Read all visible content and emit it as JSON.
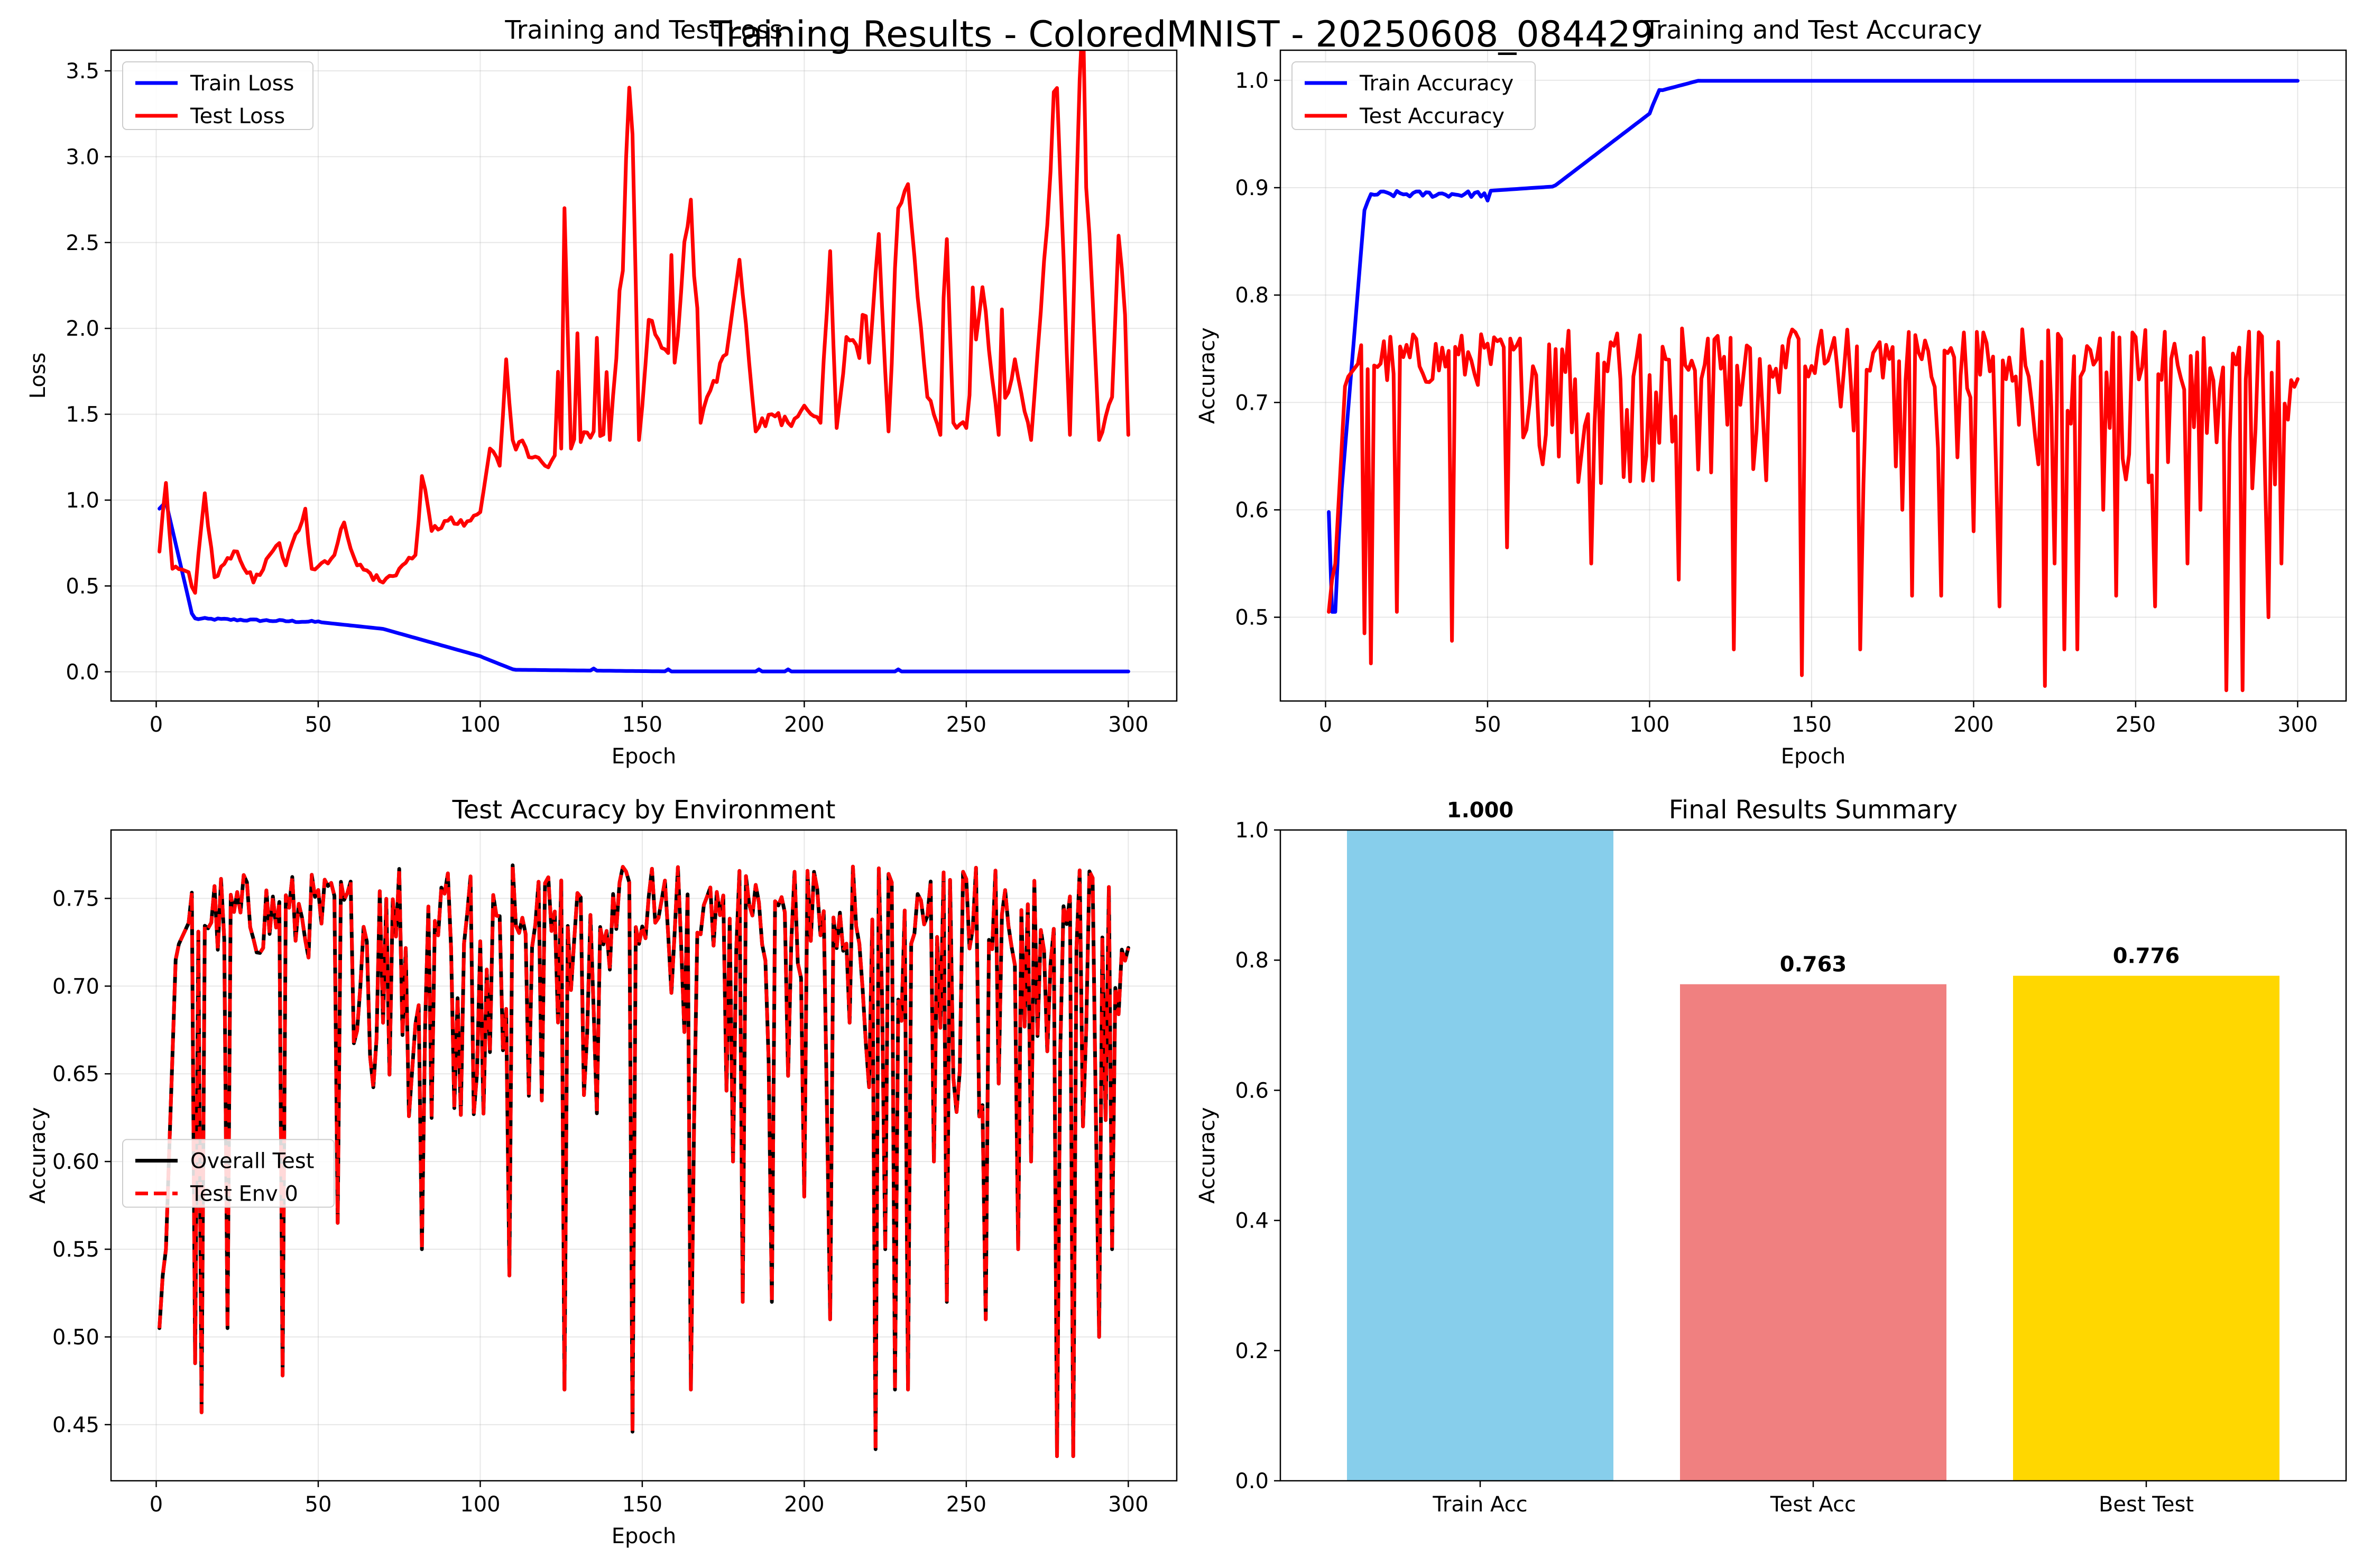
{
  "suptitle": "Training Results - ColoredMNIST - 20250608_084429",
  "colors": {
    "blue": "#0000ff",
    "red": "#ff0000",
    "black": "#000000",
    "skyblue": "#87ceeb",
    "lightcoral": "#f08080",
    "gold": "#ffd700"
  },
  "chart_data": [
    {
      "id": "loss",
      "type": "line",
      "title": "Training and Test Loss",
      "xlabel": "Epoch",
      "ylabel": "Loss",
      "xlim": [
        -13.95,
        314.95
      ],
      "ylim": [
        -0.17,
        3.62
      ],
      "xticks": [
        0,
        50,
        100,
        150,
        200,
        250,
        300
      ],
      "yticks": [
        0.0,
        0.5,
        1.0,
        1.5,
        2.0,
        2.5,
        3.0,
        3.5
      ],
      "grid": true,
      "legend": "upper-left",
      "series": [
        {
          "name": "Train Loss",
          "color": "#0000ff",
          "dash": false,
          "generator": "train_loss"
        },
        {
          "name": "Test Loss",
          "color": "#ff0000",
          "dash": false,
          "generator": "test_loss",
          "anchors": [
            [
              1,
              0.7
            ],
            [
              3,
              1.1
            ],
            [
              5,
              0.6
            ],
            [
              10,
              0.58
            ],
            [
              12,
              0.46
            ],
            [
              15,
              1.04
            ],
            [
              18,
              0.55
            ],
            [
              25,
              0.7
            ],
            [
              30,
              0.52
            ],
            [
              38,
              0.75
            ],
            [
              40,
              0.62
            ],
            [
              46,
              0.95
            ],
            [
              48,
              0.6
            ],
            [
              55,
              0.68
            ],
            [
              58,
              0.87
            ],
            [
              62,
              0.62
            ],
            [
              70,
              0.52
            ],
            [
              75,
              0.6
            ],
            [
              80,
              0.68
            ],
            [
              82,
              1.14
            ],
            [
              85,
              0.82
            ],
            [
              90,
              0.88
            ],
            [
              95,
              0.85
            ],
            [
              100,
              0.93
            ],
            [
              101,
              1.05
            ],
            [
              103,
              1.3
            ],
            [
              106,
              1.2
            ],
            [
              108,
              1.82
            ],
            [
              110,
              1.35
            ],
            [
              115,
              1.25
            ],
            [
              120,
              1.2
            ],
            [
              125,
              1.3
            ],
            [
              126,
              2.7
            ],
            [
              128,
              1.3
            ],
            [
              135,
              1.4
            ],
            [
              140,
              1.35
            ],
            [
              147,
              3.13
            ],
            [
              149,
              1.35
            ],
            [
              152,
              2.05
            ],
            [
              160,
              1.8
            ],
            [
              165,
              2.75
            ],
            [
              168,
              1.45
            ],
            [
              170,
              1.6
            ],
            [
              176,
              1.85
            ],
            [
              180,
              2.4
            ],
            [
              185,
              1.4
            ],
            [
              190,
              1.5
            ],
            [
              195,
              1.45
            ],
            [
              200,
              1.55
            ],
            [
              205,
              1.45
            ],
            [
              208,
              2.45
            ],
            [
              210,
              1.42
            ],
            [
              213,
              1.95
            ],
            [
              220,
              1.8
            ],
            [
              223,
              2.55
            ],
            [
              226,
              1.4
            ],
            [
              229,
              2.7
            ],
            [
              232,
              2.84
            ],
            [
              234,
              2.42
            ],
            [
              238,
              1.6
            ],
            [
              242,
              1.38
            ],
            [
              244,
              2.52
            ],
            [
              246,
              1.45
            ],
            [
              250,
              1.42
            ],
            [
              255,
              2.24
            ],
            [
              260,
              1.38
            ],
            [
              265,
              1.82
            ],
            [
              270,
              1.35
            ],
            [
              278,
              3.4
            ],
            [
              282,
              1.38
            ],
            [
              285,
              3.45
            ],
            [
              288,
              2.55
            ],
            [
              291,
              1.35
            ],
            [
              295,
              1.6
            ],
            [
              297,
              2.54
            ],
            [
              299,
              2.08
            ],
            [
              300,
              1.38
            ]
          ],
          "approximate": true
        }
      ]
    },
    {
      "id": "acc",
      "type": "line",
      "title": "Training and Test Accuracy",
      "xlabel": "Epoch",
      "ylabel": "Accuracy",
      "xlim": [
        -13.95,
        314.95
      ],
      "ylim": [
        0.422,
        1.028
      ],
      "xticks": [
        0,
        50,
        100,
        150,
        200,
        250,
        300
      ],
      "yticks": [
        0.5,
        0.6,
        0.7,
        0.8,
        0.9,
        1.0
      ],
      "grid": true,
      "legend": "upper-left",
      "series": [
        {
          "name": "Train Accuracy",
          "color": "#0000ff",
          "dash": false,
          "generator": "train_acc"
        },
        {
          "name": "Test Accuracy",
          "color": "#ff0000",
          "dash": false,
          "generator": "test_acc",
          "dips": [
            [
              12,
              0.485
            ],
            [
              14,
              0.457
            ],
            [
              22,
              0.505
            ],
            [
              39,
              0.478
            ],
            [
              56,
              0.565
            ],
            [
              82,
              0.55
            ],
            [
              109,
              0.535
            ],
            [
              126,
              0.47
            ],
            [
              147,
              0.446
            ],
            [
              165,
              0.47
            ],
            [
              178,
              0.6
            ],
            [
              181,
              0.52
            ],
            [
              190,
              0.52
            ],
            [
              200,
              0.58
            ],
            [
              208,
              0.51
            ],
            [
              222,
              0.436
            ],
            [
              225,
              0.55
            ],
            [
              228,
              0.47
            ],
            [
              232,
              0.47
            ],
            [
              240,
              0.6
            ],
            [
              244,
              0.52
            ],
            [
              256,
              0.51
            ],
            [
              266,
              0.55
            ],
            [
              270,
              0.6
            ],
            [
              278,
              0.432
            ],
            [
              283,
              0.432
            ],
            [
              286,
              0.62
            ],
            [
              291,
              0.5
            ],
            [
              295,
              0.55
            ]
          ],
          "approximate": true
        }
      ]
    },
    {
      "id": "env",
      "type": "line",
      "title": "Test Accuracy by Environment",
      "xlabel": "Epoch",
      "ylabel": "Accuracy",
      "xlim": [
        -13.95,
        314.95
      ],
      "ylim": [
        0.418,
        0.789
      ],
      "xticks": [
        0,
        50,
        100,
        150,
        200,
        250,
        300
      ],
      "yticks": [
        0.45,
        0.5,
        0.55,
        0.6,
        0.65,
        0.7,
        0.75
      ],
      "grid": true,
      "legend": "center-left",
      "series": [
        {
          "name": "Overall Test",
          "color": "#000000",
          "dash": false,
          "generator": "test_acc"
        },
        {
          "name": "Test Env 0",
          "color": "#ff0000",
          "dash": true,
          "generator": "test_acc"
        }
      ]
    },
    {
      "id": "summary",
      "type": "bar",
      "title": "Final Results Summary",
      "xlabel": "",
      "ylabel": "Accuracy",
      "ylim": [
        0,
        1.0
      ],
      "yticks": [
        0.0,
        0.2,
        0.4,
        0.6,
        0.8,
        1.0
      ],
      "categories": [
        "Train Acc",
        "Test Acc",
        "Best Test"
      ],
      "values": [
        1.0,
        0.763,
        0.776
      ],
      "value_labels": [
        "1.000",
        "0.763",
        "0.776"
      ],
      "bar_colors": [
        "#87ceeb",
        "#f08080",
        "#ffd700"
      ],
      "grid": false
    }
  ]
}
